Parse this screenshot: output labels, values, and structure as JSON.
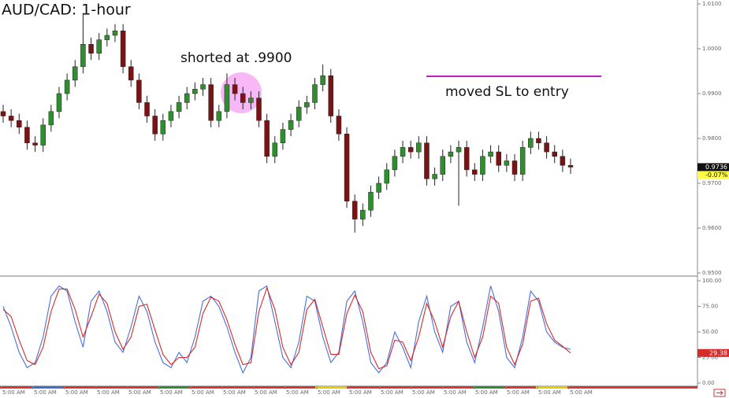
{
  "chart_data": {
    "type": "candlestick",
    "title": "AUD/CAD: 1-hour",
    "annotations": [
      "shorted at .9900",
      "moved SL to entry"
    ],
    "open": [
      0.986,
      0.985,
      0.984,
      0.9825,
      0.979,
      0.9785,
      0.983,
      0.986,
      0.99,
      0.993,
      0.996,
      1.001,
      0.999,
      1.002,
      1.003,
      1.004,
      0.996,
      0.993,
      0.988,
      0.985,
      0.981,
      0.984,
      0.986,
      0.988,
      0.99,
      0.991,
      0.992,
      0.984,
      0.986,
      0.992,
      0.99,
      0.988,
      0.989,
      0.984,
      0.976,
      0.979,
      0.982,
      0.984,
      0.987,
      0.988,
      0.992,
      0.994,
      0.985,
      0.981,
      0.966,
      0.962,
      0.964,
      0.968,
      0.97,
      0.973,
      0.976,
      0.978,
      0.977,
      0.979,
      0.971,
      0.972,
      0.976,
      0.977,
      0.978,
      0.973,
      0.972,
      0.976,
      0.977,
      0.974,
      0.975,
      0.972,
      0.978,
      0.98,
      0.979,
      0.977,
      0.976,
      0.974
    ],
    "high": [
      0.9875,
      0.9865,
      0.9855,
      0.984,
      0.9805,
      0.9845,
      0.9875,
      0.9915,
      0.9945,
      0.9975,
      1.008,
      1.0025,
      1.0035,
      1.0045,
      1.0055,
      1.0055,
      0.9975,
      0.9945,
      0.9895,
      0.9865,
      0.9855,
      0.9875,
      0.9895,
      0.9915,
      0.9925,
      0.9935,
      0.9935,
      0.9875,
      0.9945,
      0.9935,
      0.9915,
      0.9905,
      0.9905,
      0.9855,
      0.9805,
      0.9835,
      0.9855,
      0.9885,
      0.9895,
      0.9935,
      0.9965,
      0.9955,
      0.9865,
      0.9825,
      0.9675,
      0.9655,
      0.9695,
      0.9715,
      0.9745,
      0.9775,
      0.9795,
      0.9795,
      0.9805,
      0.9805,
      0.9735,
      0.9775,
      0.9785,
      0.9795,
      0.9795,
      0.9745,
      0.9775,
      0.9785,
      0.9785,
      0.9765,
      0.9765,
      0.9795,
      0.9815,
      0.9815,
      0.9805,
      0.9785,
      0.9775,
      0.9755
    ],
    "low": [
      0.9835,
      0.9825,
      0.981,
      0.9775,
      0.977,
      0.977,
      0.9815,
      0.9845,
      0.9885,
      0.9915,
      0.9945,
      0.9975,
      0.9975,
      1.0005,
      1.0015,
      0.9945,
      0.9915,
      0.9865,
      0.9835,
      0.9795,
      0.9795,
      0.9825,
      0.9845,
      0.9865,
      0.9885,
      0.9895,
      0.9825,
      0.9825,
      0.9845,
      0.9885,
      0.9865,
      0.9865,
      0.9825,
      0.9745,
      0.9745,
      0.9775,
      0.9805,
      0.9825,
      0.9855,
      0.9865,
      0.9905,
      0.9835,
      0.9795,
      0.9645,
      0.959,
      0.9605,
      0.9625,
      0.9665,
      0.9685,
      0.9715,
      0.9745,
      0.9755,
      0.9755,
      0.9695,
      0.9695,
      0.9705,
      0.9745,
      0.965,
      0.9715,
      0.9705,
      0.9705,
      0.9745,
      0.9725,
      0.9725,
      0.9705,
      0.9705,
      0.9765,
      0.9775,
      0.9755,
      0.9745,
      0.9725,
      0.9721
    ],
    "close": [
      0.985,
      0.984,
      0.9825,
      0.979,
      0.9785,
      0.983,
      0.986,
      0.99,
      0.993,
      0.996,
      1.001,
      0.999,
      1.002,
      1.003,
      1.004,
      0.996,
      0.993,
      0.988,
      0.985,
      0.981,
      0.984,
      0.986,
      0.988,
      0.99,
      0.991,
      0.992,
      0.984,
      0.986,
      0.992,
      0.99,
      0.988,
      0.989,
      0.984,
      0.976,
      0.979,
      0.982,
      0.984,
      0.987,
      0.988,
      0.992,
      0.994,
      0.985,
      0.981,
      0.966,
      0.962,
      0.964,
      0.968,
      0.97,
      0.973,
      0.976,
      0.978,
      0.977,
      0.979,
      0.971,
      0.972,
      0.976,
      0.977,
      0.978,
      0.973,
      0.972,
      0.976,
      0.977,
      0.974,
      0.975,
      0.972,
      0.978,
      0.98,
      0.979,
      0.977,
      0.976,
      0.974,
      0.9736
    ],
    "up_color": "#2f8f2f",
    "down_color": "#7a1414",
    "ylim": [
      0.95,
      1.01
    ],
    "yticks": [
      {
        "value": 1.01,
        "label": "1.0100"
      },
      {
        "value": 1.0,
        "label": "1.0000"
      },
      {
        "value": 0.99,
        "label": "0.9900"
      },
      {
        "value": 0.98,
        "label": "0.9800"
      },
      {
        "value": 0.97,
        "label": "0.9700"
      },
      {
        "value": 0.96,
        "label": "0.9600"
      },
      {
        "value": 0.95,
        "label": "0.9500"
      }
    ],
    "last_price": 0.9736,
    "change_label": "-0.07%",
    "x_labels": [
      "5:00 AM",
      "5:00 AM",
      "5:00 AM",
      "5:00 AM",
      "5:00 AM",
      "5:00 AM",
      "5:00 AM",
      "5:00 AM",
      "5:00 AM",
      "5:00 AM",
      "5:00 AM",
      "5:00 AM",
      "5:00 AM",
      "5:00 AM",
      "5:00 AM",
      "5:00 AM",
      "5:00 AM",
      "5:00 AM",
      "5:00 AM"
    ],
    "indicator": {
      "type": "line",
      "series": [
        {
          "color": "#4a6fd8",
          "values": [
            75,
            55,
            30,
            15,
            20,
            45,
            85,
            95,
            90,
            60,
            35,
            80,
            90,
            70,
            40,
            30,
            55,
            85,
            70,
            40,
            20,
            15,
            30,
            20,
            45,
            80,
            85,
            75,
            55,
            30,
            10,
            25,
            90,
            95,
            60,
            25,
            15,
            40,
            85,
            80,
            45,
            20,
            30,
            80,
            90,
            60,
            20,
            10,
            20,
            50,
            35,
            15,
            60,
            85,
            50,
            30,
            75,
            80,
            40,
            20,
            55,
            95,
            70,
            25,
            15,
            45,
            90,
            80,
            50,
            40,
            35,
            33
          ]
        },
        {
          "color": "#d62b2b",
          "values": [
            72,
            65,
            42,
            22,
            18,
            35,
            70,
            92,
            92,
            72,
            45,
            65,
            87,
            78,
            50,
            33,
            45,
            75,
            77,
            52,
            28,
            18,
            25,
            25,
            35,
            68,
            84,
            80,
            62,
            38,
            18,
            20,
            70,
            93,
            72,
            35,
            18,
            30,
            72,
            82,
            55,
            28,
            28,
            68,
            86,
            70,
            30,
            14,
            17,
            42,
            40,
            22,
            45,
            78,
            60,
            35,
            65,
            80,
            50,
            25,
            45,
            85,
            78,
            35,
            18,
            38,
            80,
            83,
            58,
            42,
            36,
            29.38
          ]
        }
      ],
      "ylim": [
        0,
        100
      ],
      "yticks": [
        {
          "value": 100,
          "label": "100.00"
        },
        {
          "value": 75,
          "label": "75.00"
        },
        {
          "value": 50,
          "label": "50.00"
        },
        {
          "value": 25,
          "label": "25.00"
        },
        {
          "value": 0,
          "label": "0.00"
        }
      ],
      "last_value": 29.38
    }
  }
}
